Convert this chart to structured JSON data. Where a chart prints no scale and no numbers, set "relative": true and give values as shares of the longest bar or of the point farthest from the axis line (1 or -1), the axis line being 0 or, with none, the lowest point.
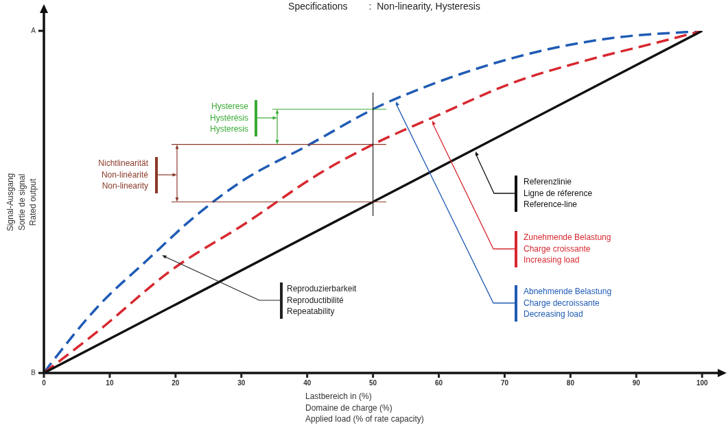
{
  "chart_data": {
    "type": "line",
    "title": "Specifications        :  Non-linearity, Hysteresis",
    "xlabel": "Lastbereich in (%)\nDomaine de charge (%)\nApplied load (% of rate capacity)",
    "ylabel": "Signal-Ausgang\nSortie de signal\nRated output",
    "relative": true,
    "xlim": [
      0,
      103
    ],
    "xticks": [
      0,
      10,
      20,
      30,
      40,
      50,
      60,
      70,
      80,
      90,
      100
    ],
    "grid": false,
    "legend": false,
    "marker": "none",
    "series": [
      {
        "name": "Referenzlinie\nLigne de réference\nReference-line",
        "color": "#111111",
        "line_style": "solid",
        "x": [
          0,
          100
        ],
        "values": [
          0,
          1
        ]
      },
      {
        "name": "Zunehmende Belastung\nCharge croissante\nIncreasing load",
        "color": "#d7282f",
        "line_style": "dashed",
        "x": [
          0,
          8.2,
          19.4,
          30.6,
          41.7,
          50,
          59,
          71.5,
          82.7,
          93.8,
          100
        ],
        "values": [
          0,
          0.122,
          0.301,
          0.437,
          0.581,
          0.668,
          0.746,
          0.85,
          0.915,
          0.969,
          1
        ]
      },
      {
        "name": "Abnehmende Belastung\nCharge decroissante\nDecreasing load",
        "color": "#1f5bb5",
        "line_style": "dashed",
        "x": [
          0,
          0.8,
          8.2,
          15.7,
          23.1,
          30.6,
          39.9,
          50,
          53.5,
          64.1,
          75.2,
          86.3,
          100
        ],
        "values": [
          0,
          0.021,
          0.194,
          0.33,
          0.46,
          0.567,
          0.663,
          0.771,
          0.802,
          0.879,
          0.94,
          0.979,
          1
        ]
      }
    ],
    "ref_lines": [
      {
        "axis": "y",
        "value": 0.771,
        "color": "#3aaa35"
      },
      {
        "axis": "y",
        "value": 0.668,
        "color": "#8b3a2a"
      },
      {
        "axis": "y",
        "value": 0.5,
        "color": "#8b3a2a"
      },
      {
        "axis": "x",
        "value": 50,
        "color": "#222222"
      }
    ],
    "annotations": [
      "Hysterese\nHystérésis\nHysteresis",
      "Nichtlinearität\nNon-linéarité\nNon-linearity",
      "Reproduzierbarkeit\nReproductibilité\nRepeatability",
      "A",
      "B"
    ]
  }
}
